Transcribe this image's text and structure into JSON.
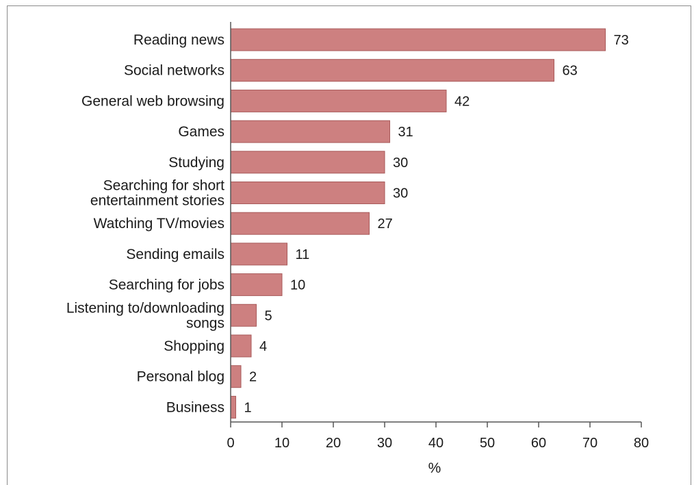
{
  "chart_data": {
    "type": "bar",
    "orientation": "horizontal",
    "categories": [
      "Reading news",
      "Social networks",
      "General web browsing",
      "Games",
      "Studying",
      "Searching for short\nentertainment stories",
      "Watching TV/movies",
      "Sending emails",
      "Searching for jobs",
      "Listening to/downloading\nsongs",
      "Shopping",
      "Personal blog",
      "Business"
    ],
    "values": [
      73,
      63,
      42,
      31,
      30,
      30,
      27,
      11,
      10,
      5,
      4,
      2,
      1
    ],
    "xlabel": "%",
    "xlim": [
      0,
      80
    ],
    "xticks": [
      0,
      10,
      20,
      30,
      40,
      50,
      60,
      70,
      80
    ],
    "grid": false,
    "bar_color": "#cd8080",
    "bar_edge_color": "#a85a5a"
  }
}
